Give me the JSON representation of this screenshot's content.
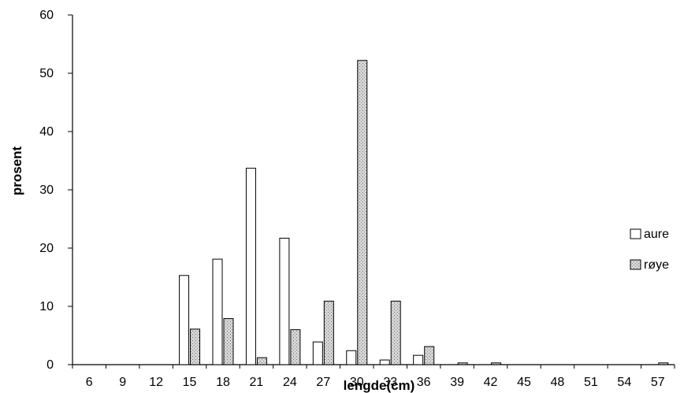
{
  "chart_data": {
    "type": "bar",
    "title": "",
    "xlabel": "lengde(cm)",
    "ylabel": "prosent",
    "ylim": [
      0,
      60
    ],
    "yticks": [
      "0",
      "10",
      "20",
      "30",
      "40",
      "50",
      "60"
    ],
    "categories": [
      "6",
      "9",
      "12",
      "15",
      "18",
      "21",
      "24",
      "27",
      "30",
      "33",
      "36",
      "39",
      "42",
      "45",
      "48",
      "51",
      "54",
      "57"
    ],
    "series": [
      {
        "name": "aure",
        "color": "#ffffff",
        "pattern": "none",
        "values": [
          0,
          0,
          0,
          15.3,
          18.1,
          33.7,
          21.7,
          3.9,
          2.4,
          0.8,
          1.6,
          0,
          0,
          0,
          0,
          0,
          0,
          0
        ]
      },
      {
        "name": "røye",
        "color": "#d9d9d9",
        "pattern": "dotted-gray",
        "values": [
          0,
          0,
          0,
          6.1,
          7.9,
          1.2,
          6.0,
          10.9,
          52.2,
          10.9,
          3.1,
          0.3,
          0.3,
          0,
          0,
          0,
          0,
          0.3
        ]
      }
    ],
    "legend_position": "right",
    "grid": false
  }
}
